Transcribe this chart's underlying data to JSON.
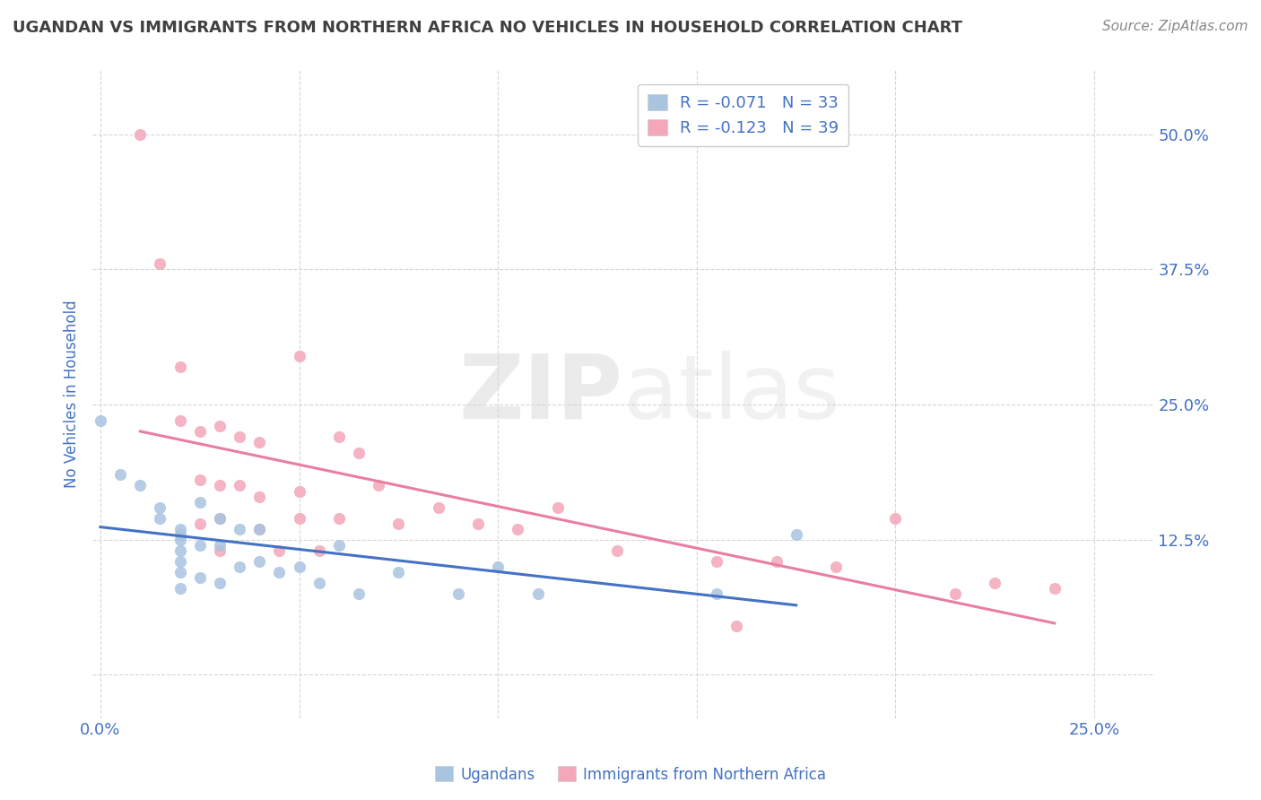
{
  "title": "UGANDAN VS IMMIGRANTS FROM NORTHERN AFRICA NO VEHICLES IN HOUSEHOLD CORRELATION CHART",
  "source": "Source: ZipAtlas.com",
  "ylabel": "No Vehicles in Household",
  "xlim": [
    -0.002,
    0.265
  ],
  "ylim": [
    -0.04,
    0.56
  ],
  "xticks": [
    0.0,
    0.05,
    0.1,
    0.15,
    0.2,
    0.25
  ],
  "xtick_labels": [
    "0.0%",
    "",
    "",
    "",
    "",
    "25.0%"
  ],
  "yticks": [
    0.0,
    0.125,
    0.25,
    0.375,
    0.5
  ],
  "ytick_labels": [
    "",
    "12.5%",
    "25.0%",
    "37.5%",
    "50.0%"
  ],
  "ugandan_color": "#a8c4e0",
  "northern_africa_color": "#f4a7b9",
  "ugandan_line_color": "#4472c4",
  "northern_africa_line_color": "#e87fa0",
  "R_ugandan": -0.071,
  "N_ugandan": 33,
  "R_northern_africa": -0.123,
  "N_northern_africa": 39,
  "ugandan_x": [
    0.0,
    0.005,
    0.01,
    0.015,
    0.015,
    0.02,
    0.02,
    0.02,
    0.02,
    0.02,
    0.02,
    0.02,
    0.025,
    0.025,
    0.025,
    0.03,
    0.03,
    0.03,
    0.035,
    0.035,
    0.04,
    0.04,
    0.045,
    0.05,
    0.055,
    0.06,
    0.065,
    0.075,
    0.09,
    0.1,
    0.11,
    0.155,
    0.175
  ],
  "ugandan_y": [
    0.235,
    0.185,
    0.175,
    0.155,
    0.145,
    0.135,
    0.13,
    0.125,
    0.115,
    0.105,
    0.095,
    0.08,
    0.16,
    0.12,
    0.09,
    0.145,
    0.12,
    0.085,
    0.135,
    0.1,
    0.135,
    0.105,
    0.095,
    0.1,
    0.085,
    0.12,
    0.075,
    0.095,
    0.075,
    0.1,
    0.075,
    0.075,
    0.13
  ],
  "northern_africa_x": [
    0.01,
    0.015,
    0.02,
    0.02,
    0.025,
    0.025,
    0.025,
    0.03,
    0.03,
    0.03,
    0.03,
    0.035,
    0.035,
    0.04,
    0.04,
    0.04,
    0.045,
    0.05,
    0.05,
    0.05,
    0.055,
    0.06,
    0.06,
    0.065,
    0.07,
    0.075,
    0.085,
    0.095,
    0.105,
    0.115,
    0.13,
    0.155,
    0.16,
    0.17,
    0.185,
    0.2,
    0.215,
    0.225,
    0.24
  ],
  "northern_africa_y": [
    0.5,
    0.38,
    0.285,
    0.235,
    0.225,
    0.18,
    0.14,
    0.23,
    0.175,
    0.145,
    0.115,
    0.22,
    0.175,
    0.215,
    0.165,
    0.135,
    0.115,
    0.295,
    0.17,
    0.145,
    0.115,
    0.22,
    0.145,
    0.205,
    0.175,
    0.14,
    0.155,
    0.14,
    0.135,
    0.155,
    0.115,
    0.105,
    0.045,
    0.105,
    0.1,
    0.145,
    0.075,
    0.085,
    0.08
  ],
  "watermark_zip": "ZIP",
  "watermark_atlas": "atlas",
  "background_color": "#ffffff",
  "grid_color": "#cccccc",
  "title_color": "#404040",
  "tick_label_color": "#4472c4",
  "marker_size": 80
}
